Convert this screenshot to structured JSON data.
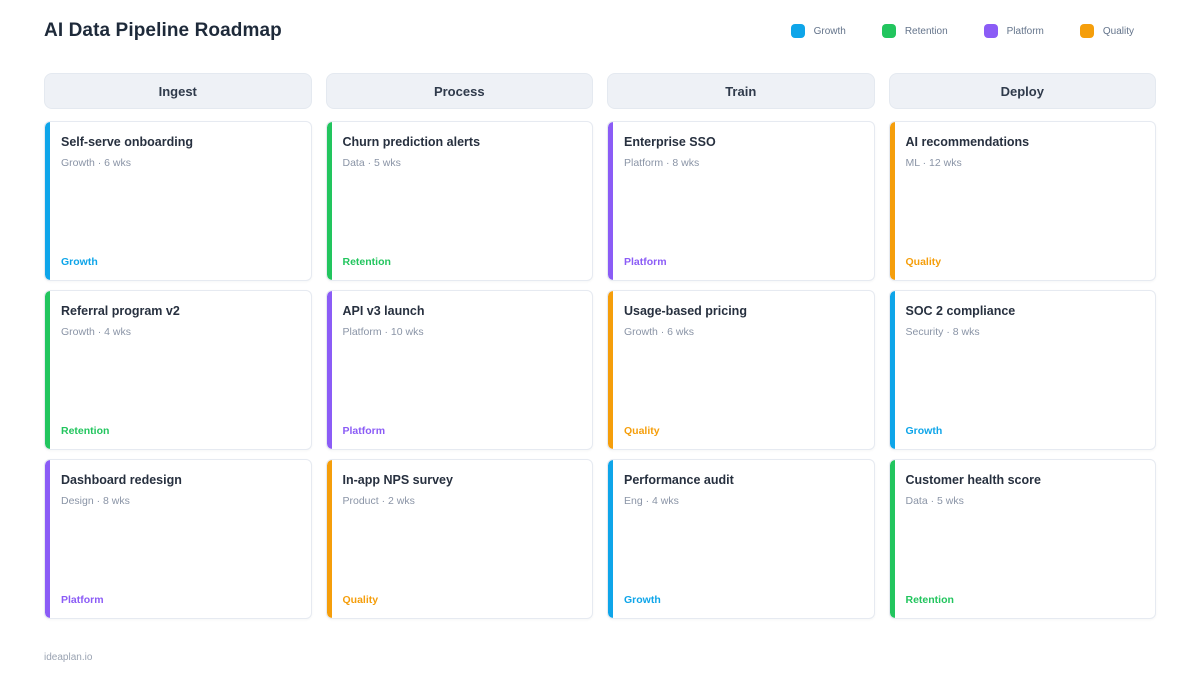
{
  "page": {
    "title": "AI Data Pipeline Roadmap",
    "footer": "ideaplan.io"
  },
  "legend": [
    {
      "label": "Growth",
      "color": "#0ea5e9"
    },
    {
      "label": "Retention",
      "color": "#22c55e"
    },
    {
      "label": "Platform",
      "color": "#8b5cf6"
    },
    {
      "label": "Quality",
      "color": "#f59e0b"
    }
  ],
  "columns": [
    {
      "header": "Ingest",
      "cards": [
        {
          "title": "Self-serve onboarding",
          "meta": "Growth · 6 wks",
          "tag": "Growth",
          "color": "#0ea5e9"
        },
        {
          "title": "Referral program v2",
          "meta": "Growth · 4 wks",
          "tag": "Retention",
          "color": "#22c55e"
        },
        {
          "title": "Dashboard redesign",
          "meta": "Design · 8 wks",
          "tag": "Platform",
          "color": "#8b5cf6"
        }
      ]
    },
    {
      "header": "Process",
      "cards": [
        {
          "title": "Churn prediction alerts",
          "meta": "Data · 5 wks",
          "tag": "Retention",
          "color": "#22c55e"
        },
        {
          "title": "API v3 launch",
          "meta": "Platform · 10 wks",
          "tag": "Platform",
          "color": "#8b5cf6"
        },
        {
          "title": "In-app NPS survey",
          "meta": "Product · 2 wks",
          "tag": "Quality",
          "color": "#f59e0b"
        }
      ]
    },
    {
      "header": "Train",
      "cards": [
        {
          "title": "Enterprise SSO",
          "meta": "Platform · 8 wks",
          "tag": "Platform",
          "color": "#8b5cf6"
        },
        {
          "title": "Usage-based pricing",
          "meta": "Growth · 6 wks",
          "tag": "Quality",
          "color": "#f59e0b"
        },
        {
          "title": "Performance audit",
          "meta": "Eng · 4 wks",
          "tag": "Growth",
          "color": "#0ea5e9"
        }
      ]
    },
    {
      "header": "Deploy",
      "cards": [
        {
          "title": "AI recommendations",
          "meta": "ML · 12 wks",
          "tag": "Quality",
          "color": "#f59e0b"
        },
        {
          "title": "SOC 2 compliance",
          "meta": "Security · 8 wks",
          "tag": "Growth",
          "color": "#0ea5e9"
        },
        {
          "title": "Customer health score",
          "meta": "Data · 5 wks",
          "tag": "Retention",
          "color": "#22c55e"
        }
      ]
    }
  ]
}
